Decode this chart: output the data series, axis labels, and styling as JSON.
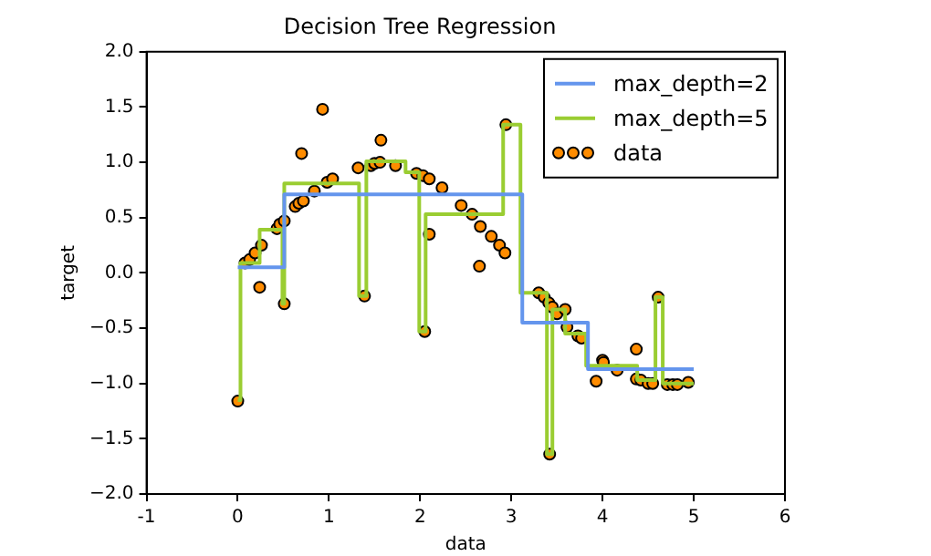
{
  "chart_data": {
    "type": "scatter",
    "title": "Decision Tree Regression",
    "xlabel": "data",
    "ylabel": "target",
    "xlim": [
      -1,
      6
    ],
    "xticks": [
      -1,
      0,
      1,
      2,
      3,
      4,
      5,
      6
    ],
    "ylim": [
      -2,
      2
    ],
    "yticks": [
      {
        "value": -2,
        "label": "−2.0"
      },
      {
        "value": -1.5,
        "label": "−1.5"
      },
      {
        "value": -1,
        "label": "−1.0"
      },
      {
        "value": -0.5,
        "label": "−0.5"
      },
      {
        "value": 0,
        "label": "0.0"
      },
      {
        "value": 0.5,
        "label": "0.5"
      },
      {
        "value": 1,
        "label": "1.0"
      },
      {
        "value": 1.5,
        "label": "1.5"
      },
      {
        "value": 2,
        "label": "2.0"
      }
    ],
    "grid": false,
    "legend": "top right",
    "series": [
      {
        "name": "max_depth=2",
        "type": "step",
        "color": "#6495ed",
        "line_style": "solid",
        "marker": "none",
        "x": [
          0,
          0.51,
          3.12,
          3.84,
          5
        ],
        "values": [
          0.05,
          0.71,
          -0.45,
          -0.87,
          -0.87
        ]
      },
      {
        "name": "max_depth=5",
        "type": "step",
        "color": "#9acd32",
        "line_style": "solid",
        "marker": "none",
        "x": [
          0,
          0.03,
          0.24,
          0.49,
          0.51,
          1.33,
          1.41,
          1.84,
          1.99,
          2.06,
          2.91,
          3.1,
          3.39,
          3.45,
          3.59,
          3.82,
          4.38,
          4.58,
          4.66,
          5
        ],
        "values": [
          -1.15,
          0.09,
          0.39,
          -0.28,
          0.81,
          -0.21,
          1.01,
          0.91,
          -0.53,
          0.53,
          1.34,
          -0.18,
          -1.64,
          -0.33,
          -0.55,
          -0.84,
          -0.97,
          -0.22,
          -1.0,
          -1.0
        ]
      },
      {
        "name": "data",
        "type": "scatter",
        "color": "#ff8c00",
        "marker": "circle",
        "x": [
          0,
          0.08,
          0.13,
          0.19,
          0.24,
          0.26,
          0.43,
          0.46,
          0.51,
          0.51,
          0.63,
          0.67,
          0.7,
          0.72,
          0.84,
          0.93,
          0.98,
          1.04,
          1.32,
          1.39,
          1.46,
          1.5,
          1.56,
          1.57,
          1.73,
          1.96,
          2.03,
          2.05,
          2.1,
          2.1,
          2.24,
          2.45,
          2.57,
          2.65,
          2.66,
          2.78,
          2.87,
          2.93,
          2.94,
          3.3,
          3.36,
          3.41,
          3.42,
          3.45,
          3.5,
          3.59,
          3.61,
          3.73,
          3.77,
          3.93,
          4.0,
          4.01,
          4.16,
          4.37,
          4.37,
          4.42,
          4.5,
          4.55,
          4.61,
          4.71,
          4.77,
          4.82,
          4.94
        ],
        "values": [
          -1.16,
          0.09,
          0.12,
          0.18,
          -0.13,
          0.25,
          0.4,
          0.44,
          0.47,
          -0.28,
          0.6,
          0.63,
          1.08,
          0.65,
          0.74,
          1.48,
          0.82,
          0.85,
          0.95,
          -0.21,
          0.97,
          0.99,
          1.0,
          1.2,
          0.97,
          0.9,
          0.88,
          -0.53,
          0.85,
          0.35,
          0.77,
          0.61,
          0.53,
          0.06,
          0.42,
          0.33,
          0.25,
          0.18,
          1.34,
          -0.18,
          -0.22,
          -0.27,
          -1.64,
          -0.31,
          -0.37,
          -0.33,
          -0.49,
          -0.57,
          -0.59,
          -0.98,
          -0.79,
          -0.81,
          -0.88,
          -0.69,
          -0.96,
          -0.97,
          -1.0,
          -1.0,
          -0.22,
          -1.01,
          -1.01,
          -1.01,
          -0.99
        ]
      }
    ]
  }
}
